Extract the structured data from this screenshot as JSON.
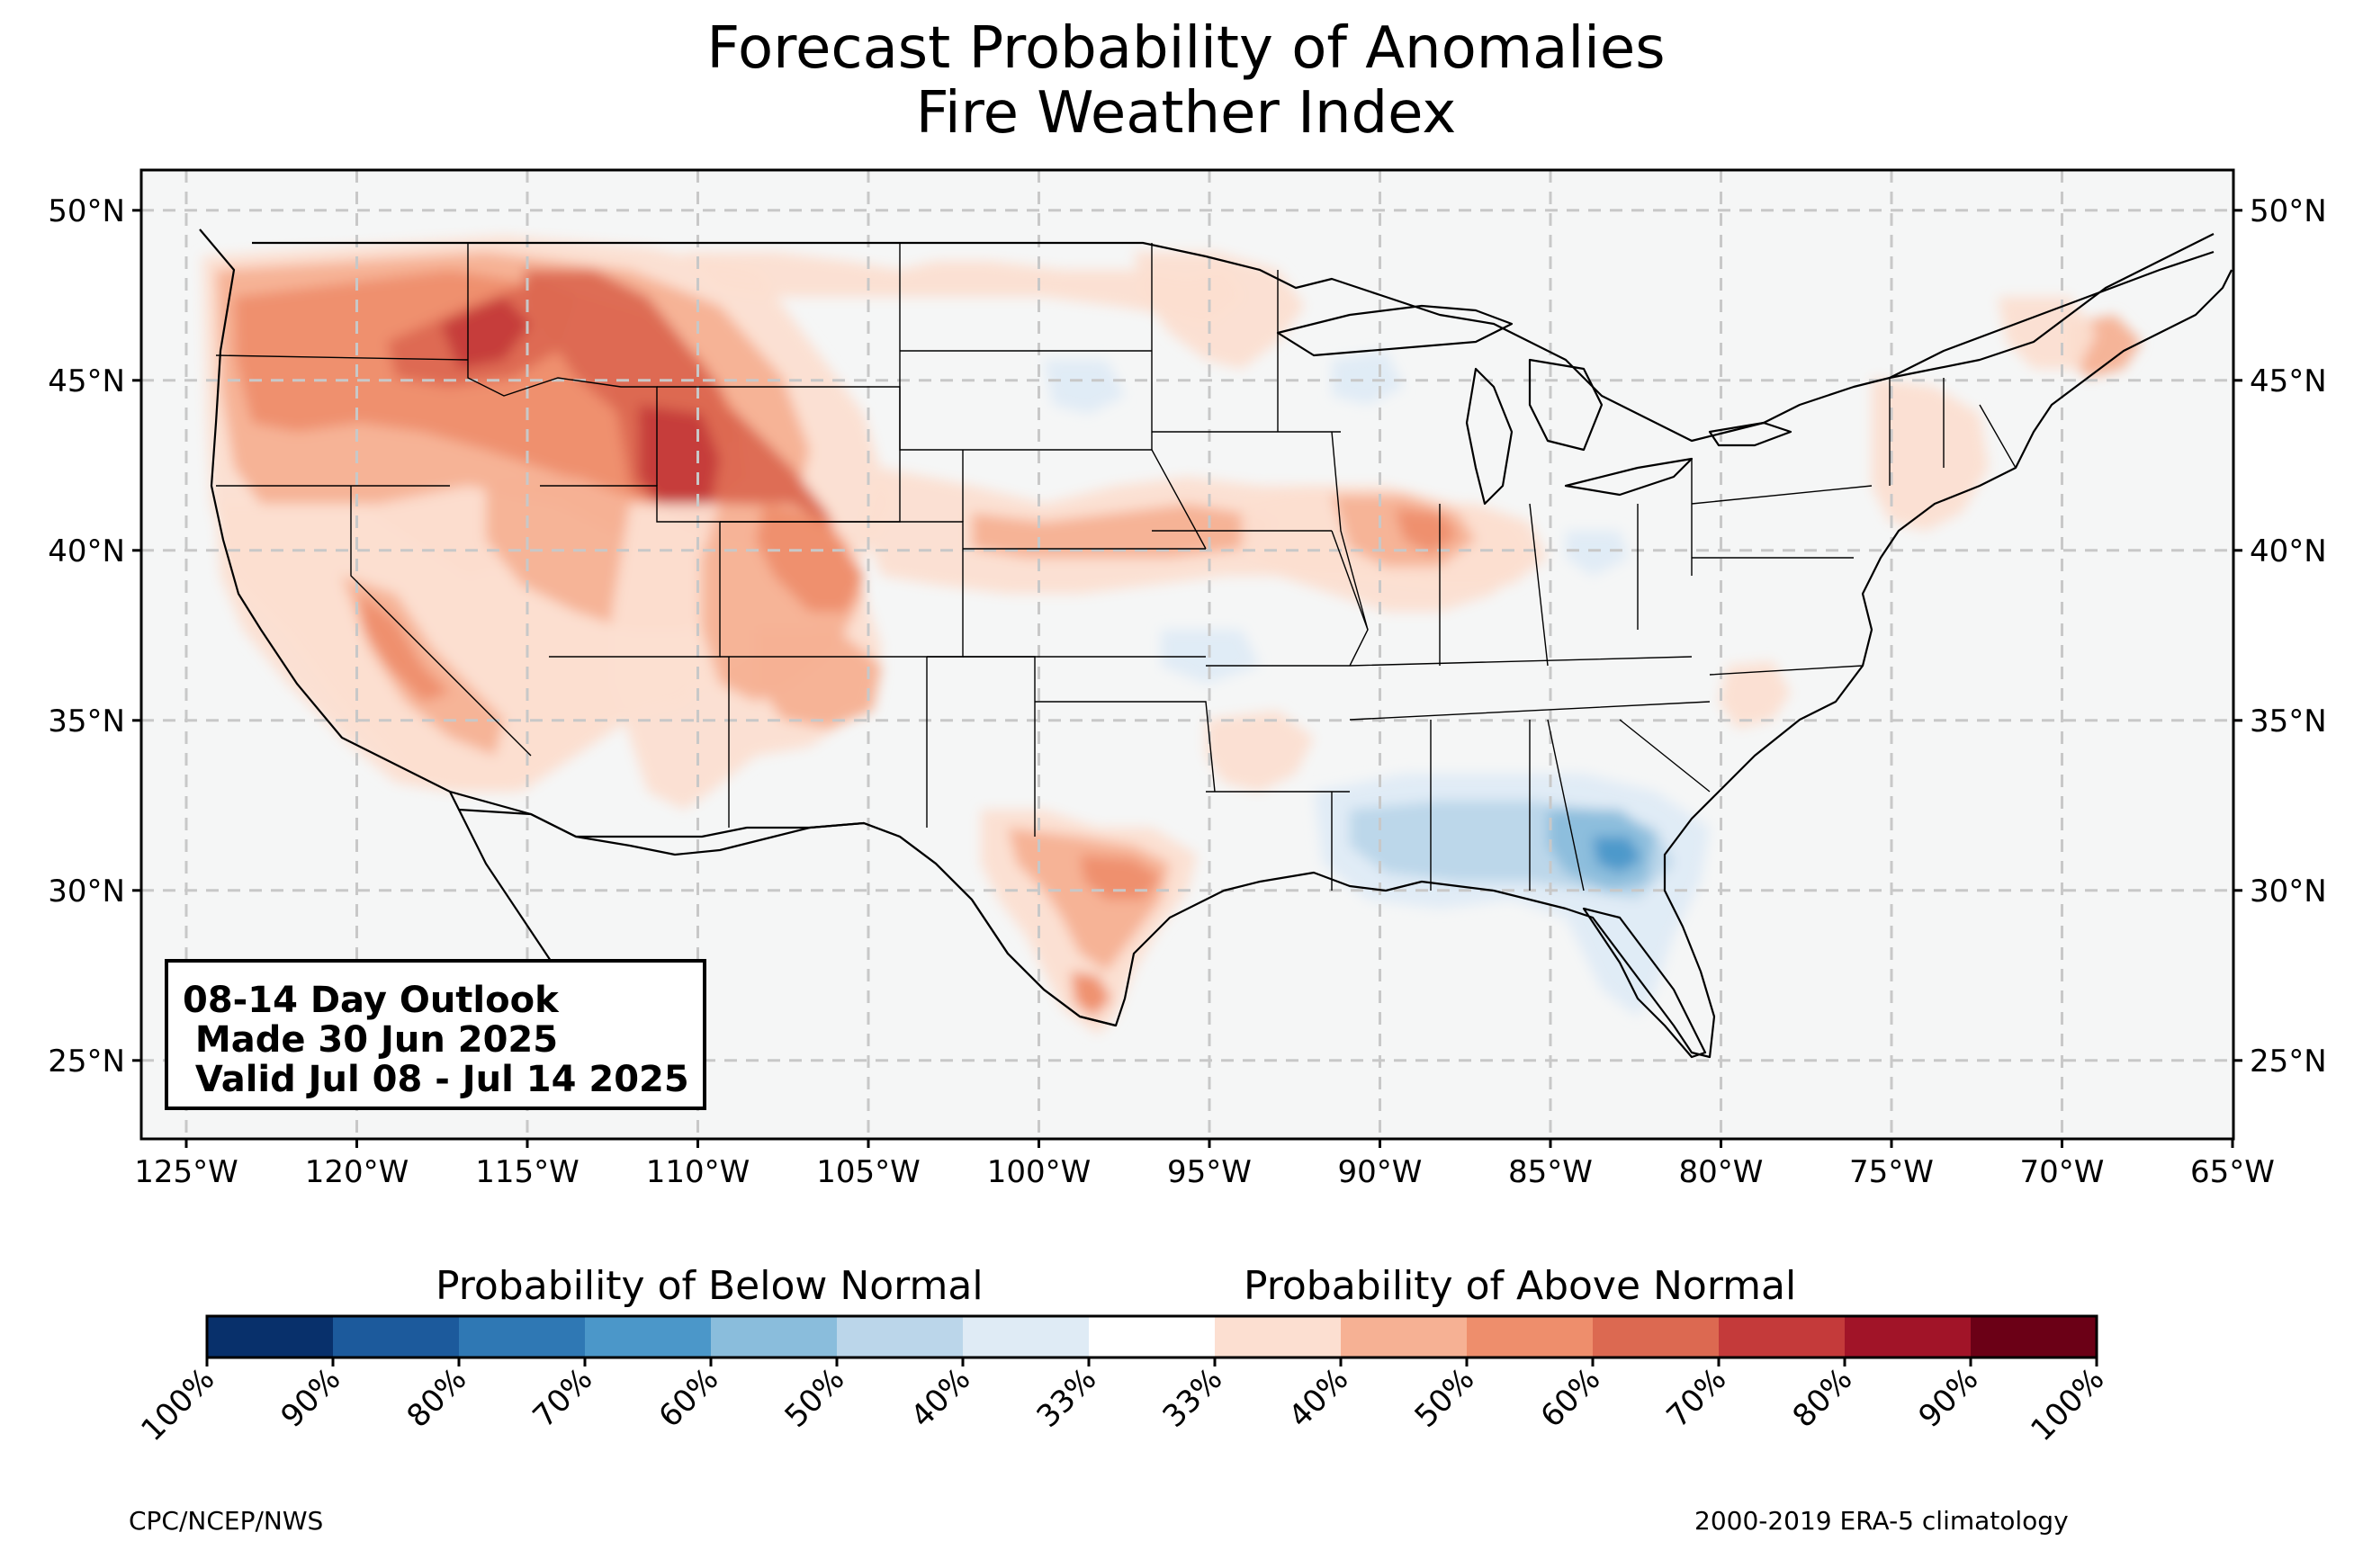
{
  "title_line1": "Forecast Probability of Anomalies",
  "title_line2": "Fire Weather Index",
  "outlook_box": {
    "line1": "08-14 Day Outlook",
    "line2": " Made 30 Jun 2025",
    "line3": " Valid Jul 08 - Jul 14 2025"
  },
  "axes": {
    "lat_labels": [
      "50°N",
      "45°N",
      "40°N",
      "35°N",
      "30°N",
      "25°N"
    ],
    "lon_labels": [
      "125°W",
      "120°W",
      "115°W",
      "110°W",
      "105°W",
      "100°W",
      "95°W",
      "90°W",
      "85°W",
      "80°W",
      "75°W",
      "70°W",
      "65°W"
    ]
  },
  "colorbar": {
    "below_label": "Probability of Below Normal",
    "above_label": "Probability of Above Normal",
    "tick_labels": [
      "100%",
      "90%",
      "80%",
      "70%",
      "60%",
      "50%",
      "40%",
      "33%",
      "33%",
      "40%",
      "50%",
      "60%",
      "70%",
      "80%",
      "90%",
      "100%"
    ],
    "colors": [
      "#08306b",
      "#1c5a9c",
      "#2f78b4",
      "#4b97c9",
      "#8abddc",
      "#bbd6ea",
      "#dfebf5",
      "#ffffff",
      "#fcdfd1",
      "#f6b194",
      "#ee8e6c",
      "#dc6951",
      "#c43a3a",
      "#a11428",
      "#6b0016"
    ]
  },
  "footer": {
    "left": "CPC/NCEP/NWS",
    "right": "2000-2019 ERA-5 climatology"
  },
  "palette": {
    "land": "#f5f6f6",
    "above_40": "#fcdfd1",
    "above_50": "#f6b194",
    "above_60": "#ee8e6c",
    "above_70": "#dc6951",
    "above_80": "#c43a3a",
    "below_40": "#dfebf5",
    "below_50": "#bbd6ea",
    "below_60": "#8abddc",
    "below_70": "#4b97c9"
  }
}
